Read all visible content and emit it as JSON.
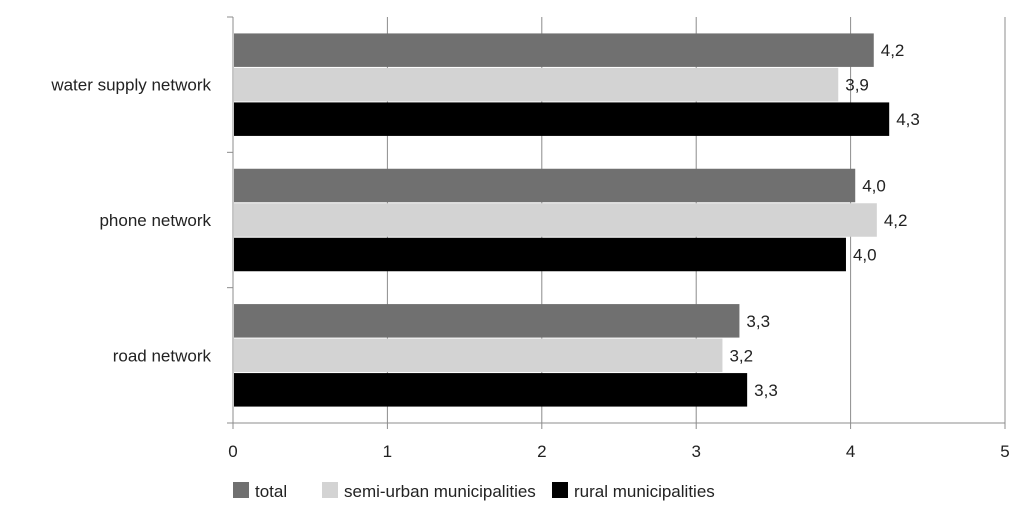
{
  "chart_data": {
    "type": "bar",
    "orientation": "horizontal",
    "categories": [
      "water supply network",
      "phone network",
      "road network"
    ],
    "series": [
      {
        "name": "total",
        "color": "#707070",
        "values": [
          4.15,
          4.03,
          3.28
        ],
        "labels": [
          "4,2",
          "4,0",
          "3,3"
        ]
      },
      {
        "name": "semi-urban municipalities",
        "color": "#d3d3d3",
        "values": [
          3.92,
          4.17,
          3.17
        ],
        "labels": [
          "3,9",
          "4,2",
          "3,2"
        ]
      },
      {
        "name": "rural municipalities",
        "color": "#000000",
        "values": [
          4.25,
          3.97,
          3.33
        ],
        "labels": [
          "4,3",
          "4,0",
          "3,3"
        ]
      }
    ],
    "xlim": [
      0,
      5
    ],
    "xticks": [
      "0",
      "1",
      "2",
      "3",
      "4",
      "5"
    ],
    "grid": true,
    "legend_position": "bottom"
  }
}
